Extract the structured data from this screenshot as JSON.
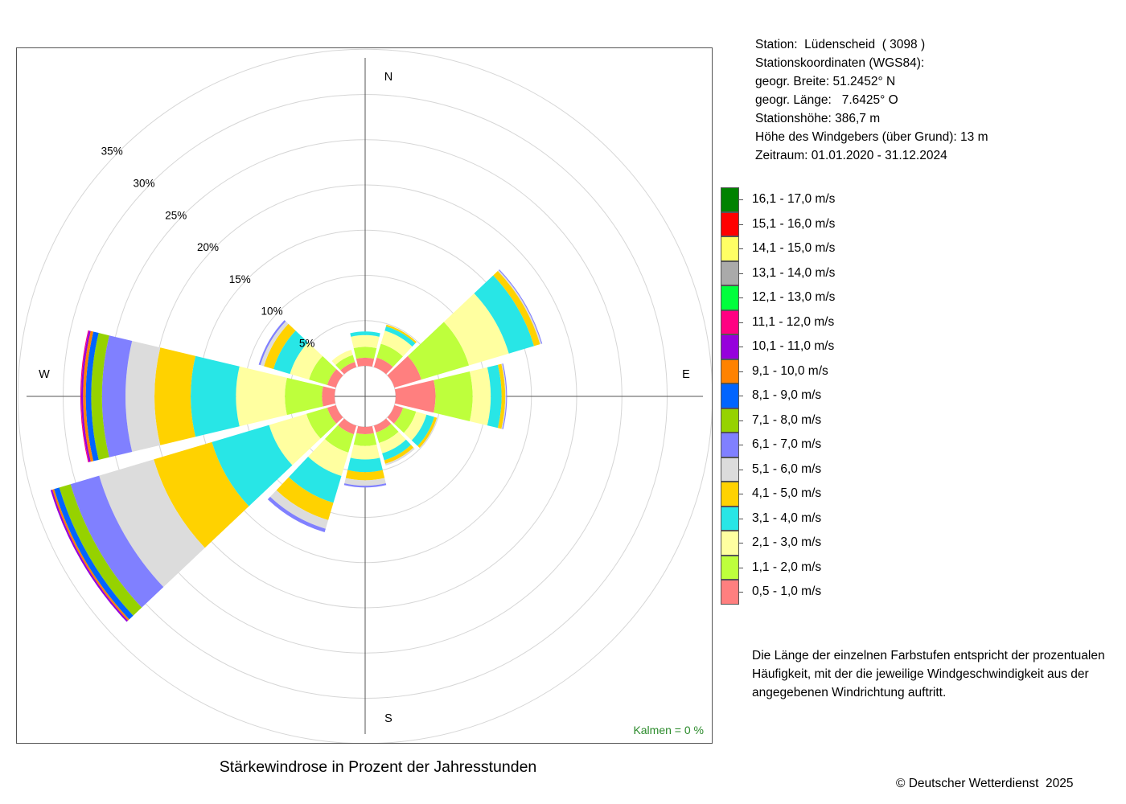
{
  "chart_data": {
    "type": "wind_rose",
    "title": "Stärkewindrose in Prozent der Jahresstunden",
    "direction_labels": {
      "n": "N",
      "e": "E",
      "s": "S",
      "w": "W"
    },
    "radial_ticks": [
      {
        "value": 5,
        "label": "5%"
      },
      {
        "value": 10,
        "label": "10%"
      },
      {
        "value": 15,
        "label": "15%"
      },
      {
        "value": 20,
        "label": "20%"
      },
      {
        "value": 25,
        "label": "25%"
      },
      {
        "value": 30,
        "label": "30%"
      },
      {
        "value": 35,
        "label": "35%"
      }
    ],
    "radial_range": [
      0,
      35
    ],
    "calm_label": "Kalmen  =  0 %",
    "sector_width_deg": 30,
    "speed_classes": [
      {
        "label": "0,5 - 1,0 m/s",
        "color": "#FF7F7F"
      },
      {
        "label": "1,1 - 2,0 m/s",
        "color": "#BEFF3C"
      },
      {
        "label": "2,1 - 3,0 m/s",
        "color": "#FFFFA0"
      },
      {
        "label": "3,1 - 4,0 m/s",
        "color": "#28E6E6"
      },
      {
        "label": "4,1 - 5,0 m/s",
        "color": "#FFD200"
      },
      {
        "label": "5,1 - 6,0 m/s",
        "color": "#DCDCDC"
      },
      {
        "label": "6,1 - 7,0 m/s",
        "color": "#8080FF"
      },
      {
        "label": "7,1 - 8,0 m/s",
        "color": "#96D200"
      },
      {
        "label": "8,1 - 9,0 m/s",
        "color": "#0064FF"
      },
      {
        "label": "9,1 - 10,0 m/s",
        "color": "#FF8200"
      },
      {
        "label": "10,1 - 11,0 m/s",
        "color": "#9600DC"
      },
      {
        "label": "11,1 - 12,0 m/s",
        "color": "#FF0082"
      },
      {
        "label": "12,1 - 13,0 m/s",
        "color": "#00FF3C"
      },
      {
        "label": "13,1 - 14,0 m/s",
        "color": "#AAAAAA"
      },
      {
        "label": "14,1 - 15,0 m/s",
        "color": "#FFFF64"
      },
      {
        "label": "15,1 - 16,0 m/s",
        "color": "#FF0000"
      },
      {
        "label": "16,1 - 17,0 m/s",
        "color": "#008200"
      }
    ],
    "sectors": [
      {
        "direction_deg": 0,
        "values": [
          0.9,
          1.2,
          1.3,
          0.4
        ]
      },
      {
        "direction_deg": 30,
        "values": [
          1.1,
          1.6,
          1.5,
          0.5,
          0.2
        ]
      },
      {
        "direction_deg": 60,
        "values": [
          3.1,
          5.5,
          4.6,
          2.9,
          0.7,
          0.15,
          0.1
        ]
      },
      {
        "direction_deg": 90,
        "values": [
          4.4,
          4.1,
          2.0,
          1.2,
          0.4,
          0.1,
          0.1
        ]
      },
      {
        "direction_deg": 120,
        "values": [
          1.0,
          1.5,
          1.2,
          0.9,
          0.3,
          0.1
        ]
      },
      {
        "direction_deg": 150,
        "values": [
          0.8,
          1.2,
          1.2,
          0.8,
          0.4,
          0.2
        ]
      },
      {
        "direction_deg": 180,
        "values": [
          0.8,
          1.3,
          1.5,
          1.4,
          0.9,
          0.6,
          0.2
        ]
      },
      {
        "direction_deg": 210,
        "values": [
          1.0,
          2.1,
          2.7,
          3.1,
          2.0,
          1.0,
          0.4
        ]
      },
      {
        "direction_deg": 240,
        "values": [
          1.0,
          2.4,
          4.3,
          6.6,
          6.7,
          6.3,
          3.3,
          1.3,
          0.6,
          0.2,
          0.2
        ]
      },
      {
        "direction_deg": 270,
        "values": [
          1.4,
          4.1,
          5.4,
          5.0,
          4.0,
          3.2,
          2.6,
          1.2,
          0.6,
          0.3,
          0.2,
          0.1
        ]
      },
      {
        "direction_deg": 300,
        "values": [
          1.0,
          2.1,
          2.2,
          1.9,
          1.1,
          0.4,
          0.2
        ]
      },
      {
        "direction_deg": 330,
        "values": [
          0.6,
          0.8,
          0.6
        ]
      }
    ]
  },
  "station_info": {
    "lines": [
      "Station:  Lüdenscheid  ( 3098 )",
      "Stationskoordinaten (WGS84):",
      "geogr. Breite: 51.2452° N",
      "geogr. Länge:   7.6425° O",
      "Stationshöhe: 386,7 m",
      "Höhe des Windgebers (über Grund): 13 m",
      "Zeitraum: 01.01.2020 - 31.12.2024"
    ]
  },
  "note": "Die Länge der einzelnen Farbstufen entspricht der prozentualen Häufigkeit, mit der die jeweilige Windgeschwindigkeit aus der angegebenen Windrichtung auftritt.",
  "copyright": "© Deutscher Wetterdienst  2025"
}
